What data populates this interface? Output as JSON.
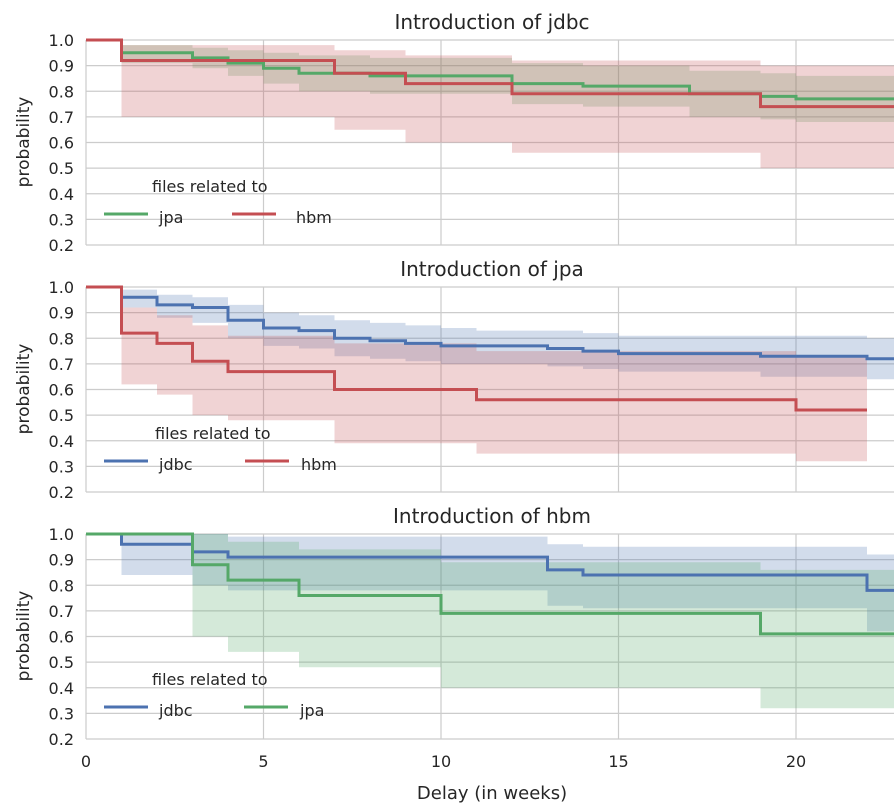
{
  "colors": {
    "jdbc": "#4c72b0",
    "jpa": "#55a868",
    "hbm": "#c44e52",
    "grid": "#cccccc",
    "text": "#262626"
  },
  "chart_data": [
    {
      "type": "line",
      "step": true,
      "title": "Introduction of jdbc",
      "ylabel": "probability",
      "xlabel": "",
      "xlim": [
        0,
        23
      ],
      "ylim": [
        0.2,
        1.0
      ],
      "xticks": [
        "0",
        "5",
        "10",
        "15",
        "20"
      ],
      "yticks": [
        "0.2",
        "0.3",
        "0.4",
        "0.5",
        "0.6",
        "0.7",
        "0.8",
        "0.9",
        "1.0"
      ],
      "grid": true,
      "legend": {
        "title": "files related to",
        "placement": "lower-left",
        "entries": [
          "jpa",
          "hbm"
        ]
      },
      "series": [
        {
          "name": "jpa",
          "color_key": "jpa",
          "x": [
            0,
            1,
            3,
            4,
            5,
            6,
            8,
            10,
            12,
            14,
            17,
            19,
            20,
            23
          ],
          "y": [
            1.0,
            0.95,
            0.93,
            0.91,
            0.89,
            0.87,
            0.86,
            0.86,
            0.83,
            0.82,
            0.79,
            0.78,
            0.77,
            0.77
          ],
          "ci_upper": [
            1.0,
            0.98,
            0.97,
            0.96,
            0.95,
            0.94,
            0.93,
            0.93,
            0.91,
            0.9,
            0.88,
            0.87,
            0.86,
            0.86
          ],
          "ci_lower": [
            1.0,
            0.91,
            0.89,
            0.86,
            0.83,
            0.8,
            0.79,
            0.79,
            0.75,
            0.74,
            0.7,
            0.69,
            0.68,
            0.68
          ]
        },
        {
          "name": "hbm",
          "color_key": "hbm",
          "x": [
            0,
            1,
            4,
            7,
            9,
            12,
            19,
            23
          ],
          "y": [
            1.0,
            0.92,
            0.92,
            0.87,
            0.83,
            0.79,
            0.74,
            0.74
          ],
          "ci_upper": [
            1.0,
            0.98,
            0.98,
            0.96,
            0.94,
            0.92,
            0.9,
            0.9
          ],
          "ci_lower": [
            1.0,
            0.7,
            0.7,
            0.65,
            0.6,
            0.56,
            0.5,
            0.5
          ]
        }
      ]
    },
    {
      "type": "line",
      "step": true,
      "title": "Introduction of jpa",
      "ylabel": "probability",
      "xlabel": "",
      "xlim": [
        0,
        23
      ],
      "ylim": [
        0.2,
        1.0
      ],
      "xticks": [
        "0",
        "5",
        "10",
        "15",
        "20"
      ],
      "yticks": [
        "0.2",
        "0.3",
        "0.4",
        "0.5",
        "0.6",
        "0.7",
        "0.8",
        "0.9",
        "1.0"
      ],
      "grid": true,
      "legend": {
        "title": "files related to",
        "placement": "lower-left",
        "entries": [
          "jdbc",
          "hbm"
        ]
      },
      "series": [
        {
          "name": "jdbc",
          "color_key": "jdbc",
          "x": [
            0,
            1,
            2,
            3,
            4,
            5,
            6,
            7,
            8,
            9,
            10,
            11,
            13,
            14,
            15,
            19,
            22,
            23
          ],
          "y": [
            1.0,
            0.96,
            0.93,
            0.92,
            0.87,
            0.84,
            0.83,
            0.8,
            0.79,
            0.78,
            0.77,
            0.77,
            0.76,
            0.75,
            0.74,
            0.73,
            0.72,
            0.72
          ],
          "ci_upper": [
            1.0,
            0.99,
            0.97,
            0.96,
            0.93,
            0.9,
            0.89,
            0.87,
            0.86,
            0.85,
            0.84,
            0.83,
            0.83,
            0.82,
            0.81,
            0.81,
            0.8,
            0.8
          ],
          "ci_lower": [
            1.0,
            0.92,
            0.88,
            0.86,
            0.8,
            0.77,
            0.76,
            0.73,
            0.72,
            0.71,
            0.7,
            0.7,
            0.69,
            0.68,
            0.67,
            0.65,
            0.64,
            0.64
          ]
        },
        {
          "name": "hbm",
          "color_key": "hbm",
          "x": [
            0,
            1,
            2,
            3,
            4,
            7,
            11,
            20,
            22
          ],
          "y": [
            1.0,
            0.82,
            0.78,
            0.71,
            0.67,
            0.6,
            0.56,
            0.52,
            0.52
          ],
          "ci_upper": [
            1.0,
            0.92,
            0.89,
            0.85,
            0.81,
            0.78,
            0.75,
            0.73,
            0.73
          ],
          "ci_lower": [
            1.0,
            0.62,
            0.58,
            0.5,
            0.48,
            0.39,
            0.35,
            0.32,
            0.32
          ]
        }
      ]
    },
    {
      "type": "line",
      "step": true,
      "title": "Introduction of hbm",
      "ylabel": "probability",
      "xlabel": "Delay (in weeks)",
      "xlim": [
        0,
        23
      ],
      "ylim": [
        0.2,
        1.0
      ],
      "xticks": [
        "0",
        "5",
        "10",
        "15",
        "20"
      ],
      "yticks": [
        "0.2",
        "0.3",
        "0.4",
        "0.5",
        "0.6",
        "0.7",
        "0.8",
        "0.9",
        "1.0"
      ],
      "grid": true,
      "legend": {
        "title": "files related to",
        "placement": "lower-left",
        "entries": [
          "jdbc",
          "jpa"
        ]
      },
      "series": [
        {
          "name": "jdbc",
          "color_key": "jdbc",
          "x": [
            0,
            1,
            3,
            4,
            13,
            14,
            22,
            23
          ],
          "y": [
            1.0,
            0.96,
            0.93,
            0.91,
            0.86,
            0.84,
            0.78,
            0.78
          ],
          "ci_upper": [
            1.0,
            1.0,
            1.0,
            0.99,
            0.96,
            0.95,
            0.92,
            0.92
          ],
          "ci_lower": [
            1.0,
            0.84,
            0.8,
            0.78,
            0.72,
            0.71,
            0.62,
            0.62
          ]
        },
        {
          "name": "jpa",
          "color_key": "jpa",
          "x": [
            0,
            3,
            4,
            6,
            10,
            19,
            23
          ],
          "y": [
            1.0,
            0.88,
            0.82,
            0.76,
            0.69,
            0.61,
            0.61
          ],
          "ci_upper": [
            1.0,
            1.0,
            0.97,
            0.94,
            0.89,
            0.86,
            0.86
          ],
          "ci_lower": [
            1.0,
            0.6,
            0.54,
            0.48,
            0.4,
            0.32,
            0.32
          ]
        }
      ]
    }
  ]
}
